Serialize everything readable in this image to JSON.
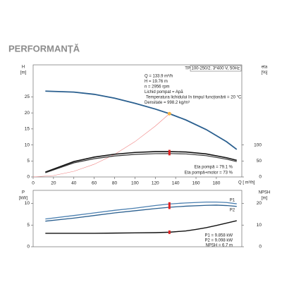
{
  "header": {
    "title": "PERFORMANȚĂ"
  },
  "chart_data": [
    {
      "type": "line",
      "ylabel": [
        "H",
        "[m]"
      ],
      "y2label": [
        "eta",
        "[%]"
      ],
      "xlabel": "Q [ m³/h]",
      "xlim": [
        0,
        205
      ],
      "ylim": [
        0,
        35
      ],
      "y2lim": [
        0,
        350
      ],
      "xticks": [
        0,
        20,
        40,
        60,
        80,
        100,
        120,
        140,
        160,
        180
      ],
      "yticks": [
        0,
        5,
        10,
        15,
        20,
        25
      ],
      "y2ticks": [
        0,
        50,
        100
      ],
      "series": [
        {
          "color": "#2a5f8f",
          "width": 1.8,
          "x": [
            12,
            40,
            60,
            80,
            100,
            120,
            133.9,
            150,
            170,
            190,
            200
          ],
          "values": [
            26.8,
            26.5,
            25.8,
            24.6,
            23.0,
            21.2,
            19.76,
            17.8,
            14.8,
            11.0,
            8.6
          ]
        },
        {
          "color": "#f08080",
          "width": 0.6,
          "x": [
            0,
            20,
            40,
            60,
            80,
            100,
            120,
            133.9
          ],
          "values": [
            0,
            0.44,
            1.76,
            3.97,
            7.05,
            11.02,
            15.87,
            19.76
          ]
        },
        {
          "color": "#111111",
          "width": 1.6,
          "axis": "y2",
          "x": [
            12,
            40,
            60,
            80,
            100,
            120,
            133.9,
            150,
            170,
            190,
            200
          ],
          "values": [
            15,
            48,
            62,
            71,
            76.5,
            79,
            79.1,
            78,
            72,
            60,
            52
          ]
        },
        {
          "color": "#333333",
          "width": 1.2,
          "axis": "y2",
          "x": [
            12,
            40,
            60,
            80,
            100,
            120,
            133.9,
            150,
            170,
            190,
            200
          ],
          "values": [
            13,
            44,
            57,
            65.5,
            70.5,
            72.8,
            73,
            72,
            66.5,
            55.5,
            48
          ]
        }
      ],
      "markers": [
        {
          "x": 133.9,
          "value": 19.76,
          "axis": "y",
          "color": "#f5b041"
        },
        {
          "x": 133.9,
          "value": 79.1,
          "axis": "y2",
          "color": "#e02020"
        },
        {
          "x": 133.9,
          "value": 73,
          "axis": "y2",
          "color": "#e02020"
        }
      ],
      "annotations": [
        "TP 100-250/2. 3*400 V, 50Hz",
        "Q = 133.9  m³/h",
        "H = 19.76 m",
        "n = 2956 rpm",
        "Lichid pompat = Apă",
        " Temperatura lichidului în timpul funcționării = 20  °C",
        "Densitate = 998.2  kg/m³",
        "Eta pompă = 79.1 %",
        "Eta pompă+motor = 73 %"
      ]
    },
    {
      "type": "line",
      "ylabel": [
        "P",
        "[kW]"
      ],
      "y2label": [
        "NPSH",
        "[m]"
      ],
      "xlim": [
        0,
        205
      ],
      "ylim": [
        0,
        13
      ],
      "y2lim": [
        0,
        26
      ],
      "yticks": [
        0,
        5,
        10
      ],
      "y2ticks": [
        0,
        10,
        20
      ],
      "series": [
        {
          "name": "P1",
          "color": "#4a7fb0",
          "width": 1.3,
          "x": [
            12,
            40,
            60,
            80,
            100,
            120,
            133.9,
            150,
            170,
            180,
            190,
            200
          ],
          "values": [
            6.4,
            7.2,
            7.8,
            8.4,
            8.9,
            9.5,
            9.858,
            10.1,
            10.3,
            10.3,
            10.2,
            9.9
          ]
        },
        {
          "name": "P2",
          "color": "#2a5f8f",
          "width": 1.3,
          "x": [
            12,
            40,
            60,
            80,
            100,
            120,
            133.9,
            150,
            170,
            180,
            190,
            200
          ],
          "values": [
            5.9,
            6.6,
            7.2,
            7.8,
            8.3,
            8.8,
            9.098,
            9.35,
            9.55,
            9.6,
            9.5,
            9.3
          ]
        },
        {
          "color": "#111111",
          "width": 1.4,
          "axis": "y2",
          "x": [
            12,
            40,
            60,
            80,
            100,
            120,
            133.9,
            150,
            160,
            170,
            180,
            190,
            200
          ],
          "values": [
            6.2,
            6.2,
            6.2,
            6.3,
            6.4,
            6.5,
            6.7,
            7.3,
            8.0,
            8.8,
            9.8,
            10.9,
            12.0
          ]
        }
      ],
      "markers": [
        {
          "x": 133.9,
          "value": 9.858,
          "axis": "y",
          "color": "#e02020"
        },
        {
          "x": 133.9,
          "value": 9.098,
          "axis": "y",
          "color": "#e02020"
        },
        {
          "x": 133.9,
          "value": 6.7,
          "axis": "y2",
          "color": "#e02020"
        }
      ],
      "annotations": [
        "P1 = 9.858 kW",
        "P2 = 9.098 kW",
        "NPSH = 6.7 m"
      ]
    }
  ]
}
